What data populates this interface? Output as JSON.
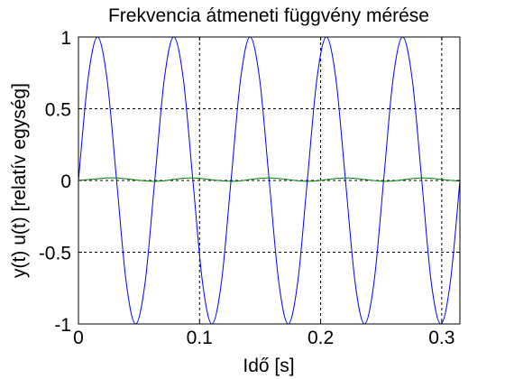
{
  "chart_data": {
    "type": "line",
    "title": "Frekvencia átmeneti függvény mérése",
    "xlabel": "Idő [s]",
    "ylabel": "y(t) u(t) [relatív egység]",
    "xlim": [
      0,
      0.315
    ],
    "ylim": [
      -1,
      1
    ],
    "xticks": [
      0,
      0.1,
      0.2,
      0.3
    ],
    "xtick_labels": [
      "0",
      "0.1",
      "0.2",
      "0.3"
    ],
    "yticks": [
      -1,
      -0.5,
      0,
      0.5,
      1
    ],
    "ytick_labels": [
      "-1",
      "-0.5",
      "0",
      "0.5",
      "1"
    ],
    "grid": true,
    "series": [
      {
        "color": "#0000ff",
        "x": [
          0,
          0.0079,
          0.0157,
          0.0236,
          0.0315,
          0.0394,
          0.0472,
          0.0551,
          0.063,
          0.0709,
          0.0787,
          0.0866,
          0.0945,
          0.1024,
          0.1102,
          0.1181,
          0.126,
          0.1339,
          0.1417,
          0.1496,
          0.1575,
          0.1654,
          0.1732,
          0.1811,
          0.189,
          0.1969,
          0.2047,
          0.2126,
          0.2205,
          0.2284,
          0.2362,
          0.2441,
          0.252,
          0.2598,
          0.2677,
          0.2756,
          0.2835,
          0.2913,
          0.2992,
          0.3071,
          0.315
        ],
        "values": [
          0,
          0.707,
          1,
          0.707,
          0,
          -0.707,
          -1,
          -0.707,
          0,
          0.707,
          1,
          0.707,
          0,
          -0.707,
          -1,
          -0.707,
          0,
          0.707,
          1,
          0.707,
          0,
          -0.707,
          -1,
          -0.707,
          0,
          0.707,
          1,
          0.707,
          0,
          -0.707,
          -1,
          -0.707,
          0,
          0.707,
          1,
          0.707,
          0,
          -0.707,
          -1,
          -0.707,
          0
        ]
      },
      {
        "color": "#008000",
        "x": [
          0,
          0.0079,
          0.0157,
          0.0236,
          0.0315,
          0.0394,
          0.0472,
          0.0551,
          0.063,
          0.0709,
          0.0787,
          0.0866,
          0.0945,
          0.1024,
          0.1102,
          0.1181,
          0.126,
          0.1339,
          0.1417,
          0.1496,
          0.1575,
          0.1654,
          0.1732,
          0.1811,
          0.189,
          0.1969,
          0.2047,
          0.2126,
          0.2205,
          0.2284,
          0.2362,
          0.2441,
          0.252,
          0.2598,
          0.2677,
          0.2756,
          0.2835,
          0.2913,
          0.2992,
          0.3071,
          0.315
        ],
        "values": [
          0,
          0.006,
          0.012,
          0.018,
          0.018,
          0.012,
          0.004,
          -0.003,
          -0.006,
          -0.002,
          0.008,
          0.016,
          0.018,
          0.013,
          0.005,
          -0.002,
          -0.006,
          -0.003,
          0.007,
          0.015,
          0.018,
          0.014,
          0.006,
          -0.002,
          -0.006,
          -0.003,
          0.006,
          0.014,
          0.018,
          0.015,
          0.007,
          -0.001,
          -0.006,
          -0.004,
          0.005,
          0.013,
          0.018,
          0.016,
          0.008,
          0.001,
          -0.004
        ]
      }
    ]
  }
}
